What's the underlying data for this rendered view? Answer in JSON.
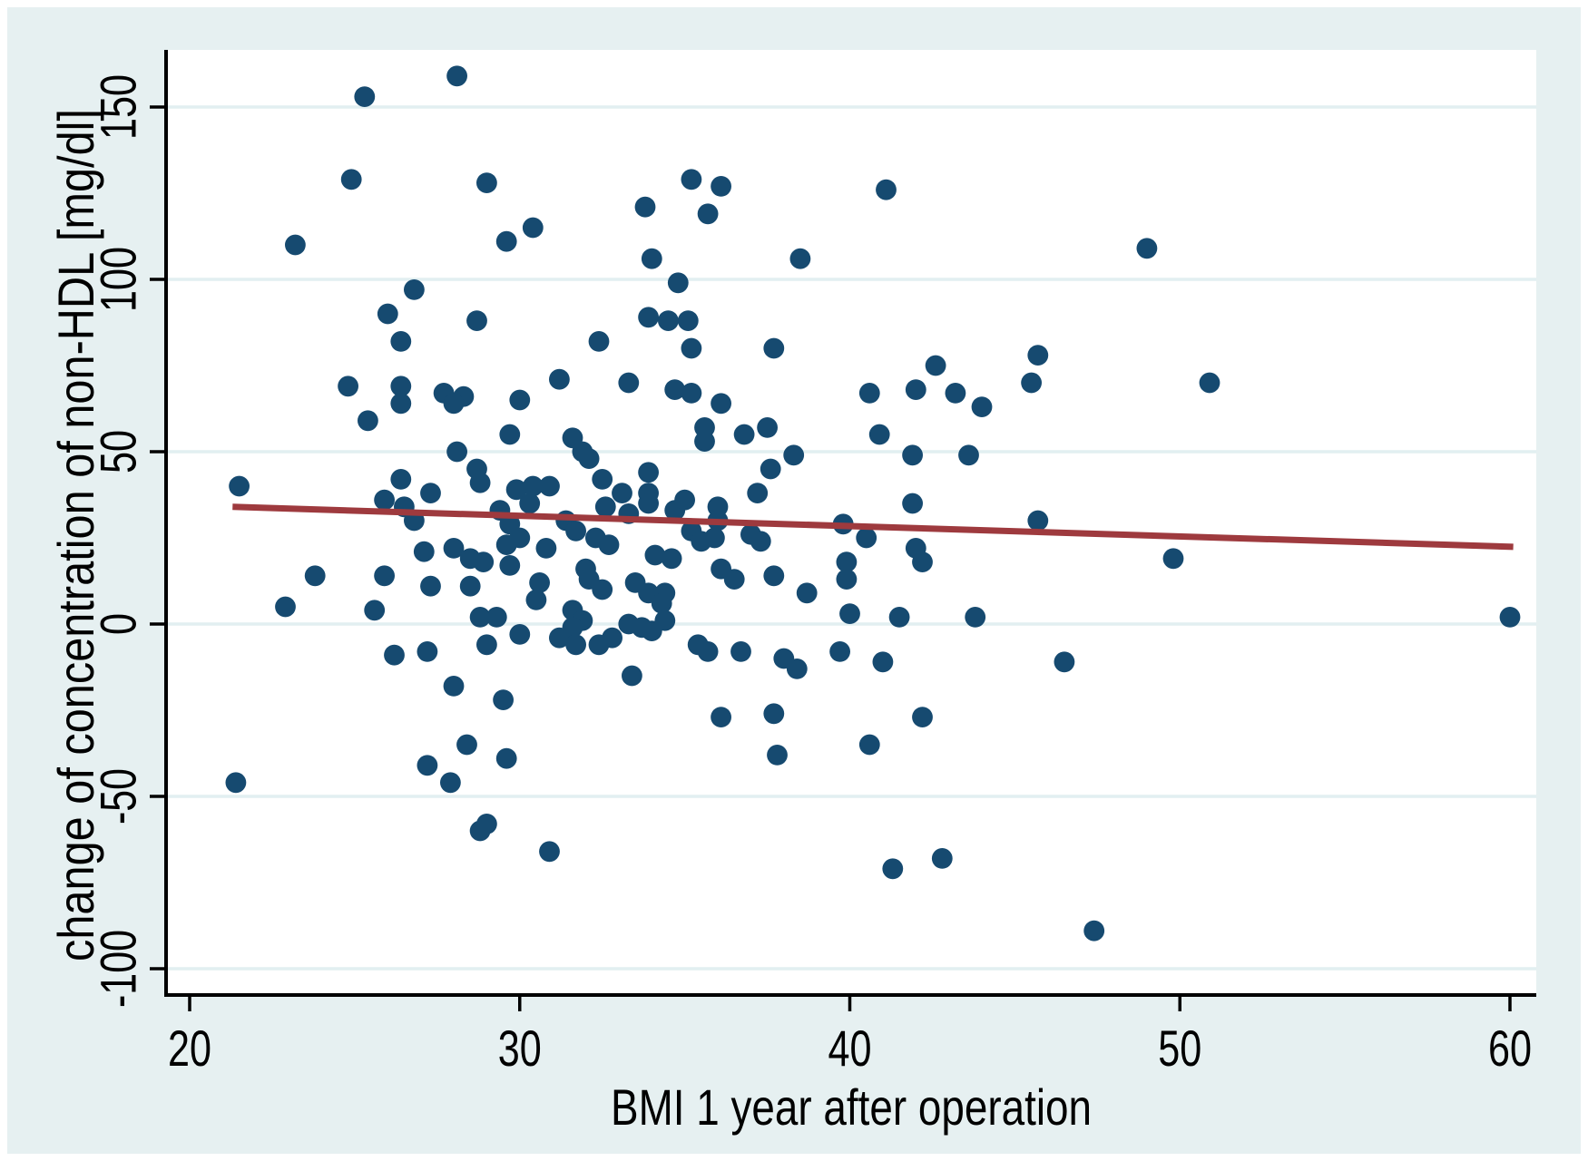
{
  "figure": {
    "description": "scatter plot with linear fit"
  },
  "chart_data": {
    "type": "scatter",
    "title": "",
    "xlabel": "BMI 1 year after operation",
    "ylabel": "change of concentration of non-HDL [mg/dl]",
    "xlim": [
      19.3,
      60.8
    ],
    "ylim": [
      -107.6,
      166.6
    ],
    "x_ticks": [
      20,
      30,
      40,
      50,
      60
    ],
    "y_ticks": [
      -100,
      -50,
      0,
      50,
      100,
      150
    ],
    "grid": "horizontal",
    "legend": "none",
    "marker_color": "#164a70",
    "trend_line": {
      "color": "#9e3a3e",
      "x1": 21.3,
      "y1": 34.0,
      "x2": 60.1,
      "y2": 22.4
    },
    "points": [
      [
        28.1,
        159
      ],
      [
        25.3,
        153
      ],
      [
        24.9,
        129
      ],
      [
        29.0,
        128
      ],
      [
        23.2,
        110
      ],
      [
        29.6,
        111
      ],
      [
        26.8,
        97
      ],
      [
        26.0,
        90
      ],
      [
        26.4,
        82
      ],
      [
        28.7,
        88
      ],
      [
        35.2,
        129
      ],
      [
        36.1,
        127
      ],
      [
        33.8,
        121
      ],
      [
        35.7,
        119
      ],
      [
        30.4,
        115
      ],
      [
        34.0,
        106
      ],
      [
        38.5,
        106
      ],
      [
        34.8,
        99
      ],
      [
        33.9,
        89
      ],
      [
        34.5,
        88
      ],
      [
        35.1,
        88
      ],
      [
        32.4,
        82
      ],
      [
        35.2,
        80
      ],
      [
        37.7,
        80
      ],
      [
        41.1,
        126
      ],
      [
        49.0,
        109
      ],
      [
        45.7,
        78
      ],
      [
        42.6,
        75
      ],
      [
        40.6,
        67
      ],
      [
        42.0,
        68
      ],
      [
        43.2,
        67
      ],
      [
        44.0,
        63
      ],
      [
        45.5,
        70
      ],
      [
        50.9,
        70
      ],
      [
        24.8,
        69
      ],
      [
        26.4,
        69
      ],
      [
        26.4,
        64
      ],
      [
        27.7,
        67
      ],
      [
        28.3,
        66
      ],
      [
        28.0,
        64
      ],
      [
        25.4,
        59
      ],
      [
        30.0,
        65
      ],
      [
        28.1,
        50
      ],
      [
        28.7,
        45
      ],
      [
        28.8,
        41
      ],
      [
        21.5,
        40
      ],
      [
        26.4,
        42
      ],
      [
        25.9,
        36
      ],
      [
        26.5,
        34
      ],
      [
        27.3,
        38
      ],
      [
        26.8,
        30
      ],
      [
        23.8,
        14
      ],
      [
        25.9,
        14
      ],
      [
        27.1,
        21
      ],
      [
        28.0,
        22
      ],
      [
        28.5,
        19
      ],
      [
        28.9,
        18
      ],
      [
        27.3,
        11
      ],
      [
        28.5,
        11
      ],
      [
        22.9,
        5
      ],
      [
        25.6,
        4
      ],
      [
        28.8,
        2
      ],
      [
        29.3,
        2
      ],
      [
        29.0,
        -6
      ],
      [
        26.2,
        -9
      ],
      [
        27.2,
        -8
      ],
      [
        31.2,
        71
      ],
      [
        33.3,
        70
      ],
      [
        34.7,
        68
      ],
      [
        35.2,
        67
      ],
      [
        36.1,
        64
      ],
      [
        35.6,
        57
      ],
      [
        35.6,
        53
      ],
      [
        36.8,
        55
      ],
      [
        37.5,
        57
      ],
      [
        29.7,
        55
      ],
      [
        31.6,
        54
      ],
      [
        31.9,
        50
      ],
      [
        32.1,
        48
      ],
      [
        38.3,
        49
      ],
      [
        37.6,
        45
      ],
      [
        33.9,
        44
      ],
      [
        32.5,
        42
      ],
      [
        29.9,
        39
      ],
      [
        30.4,
        40
      ],
      [
        30.9,
        40
      ],
      [
        30.3,
        35
      ],
      [
        29.4,
        33
      ],
      [
        33.1,
        38
      ],
      [
        32.6,
        34
      ],
      [
        33.3,
        32
      ],
      [
        33.9,
        38
      ],
      [
        33.9,
        35
      ],
      [
        34.7,
        33
      ],
      [
        35.0,
        36
      ],
      [
        36.0,
        34
      ],
      [
        36.0,
        30
      ],
      [
        37.2,
        38
      ],
      [
        37.0,
        26
      ],
      [
        37.3,
        24
      ],
      [
        35.2,
        27
      ],
      [
        35.5,
        24
      ],
      [
        35.9,
        25
      ],
      [
        29.7,
        29
      ],
      [
        30.0,
        25
      ],
      [
        29.6,
        23
      ],
      [
        30.8,
        22
      ],
      [
        31.4,
        30
      ],
      [
        31.7,
        27
      ],
      [
        32.3,
        25
      ],
      [
        32.7,
        23
      ],
      [
        32.0,
        16
      ],
      [
        32.1,
        13
      ],
      [
        34.1,
        20
      ],
      [
        34.6,
        19
      ],
      [
        33.5,
        12
      ],
      [
        36.1,
        16
      ],
      [
        36.5,
        13
      ],
      [
        37.7,
        14
      ],
      [
        38.7,
        9
      ],
      [
        29.7,
        17
      ],
      [
        30.6,
        12
      ],
      [
        30.5,
        7
      ],
      [
        32.5,
        10
      ],
      [
        33.9,
        9
      ],
      [
        34.4,
        9
      ],
      [
        34.3,
        6
      ],
      [
        31.6,
        4
      ],
      [
        31.9,
        1
      ],
      [
        31.6,
        -1
      ],
      [
        31.2,
        -4
      ],
      [
        31.7,
        -6
      ],
      [
        30.0,
        -3
      ],
      [
        33.3,
        0
      ],
      [
        33.7,
        -1
      ],
      [
        34.0,
        -2
      ],
      [
        34.4,
        1
      ],
      [
        32.4,
        -6
      ],
      [
        32.8,
        -4
      ],
      [
        35.4,
        -6
      ],
      [
        35.7,
        -8
      ],
      [
        36.7,
        -8
      ],
      [
        38.0,
        -10
      ],
      [
        38.4,
        -13
      ],
      [
        39.7,
        -8
      ],
      [
        33.4,
        -15
      ],
      [
        40.9,
        55
      ],
      [
        41.9,
        49
      ],
      [
        43.6,
        49
      ],
      [
        41.9,
        35
      ],
      [
        45.7,
        30
      ],
      [
        39.8,
        29
      ],
      [
        40.5,
        25
      ],
      [
        42.0,
        22
      ],
      [
        42.2,
        18
      ],
      [
        39.9,
        18
      ],
      [
        39.9,
        13
      ],
      [
        49.8,
        19
      ],
      [
        41.5,
        2
      ],
      [
        40.0,
        3
      ],
      [
        43.8,
        2
      ],
      [
        41.0,
        -11
      ],
      [
        46.5,
        -11
      ],
      [
        60.0,
        2
      ],
      [
        21.4,
        -46
      ],
      [
        27.2,
        -41
      ],
      [
        27.9,
        -46
      ],
      [
        28.4,
        -35
      ],
      [
        28.0,
        -18
      ],
      [
        29.5,
        -22
      ],
      [
        29.6,
        -39
      ],
      [
        28.8,
        -60
      ],
      [
        29.0,
        -58
      ],
      [
        36.1,
        -27
      ],
      [
        37.7,
        -26
      ],
      [
        37.8,
        -38
      ],
      [
        30.9,
        -66
      ],
      [
        42.2,
        -27
      ],
      [
        40.6,
        -35
      ],
      [
        41.3,
        -71
      ],
      [
        42.8,
        -68
      ],
      [
        47.4,
        -89
      ]
    ]
  },
  "colors": {
    "outer_bg": "#e6f0f1",
    "plot_bg": "#ffffff",
    "grid": "#e2eff1",
    "axis": "#000000",
    "text": "#000000"
  }
}
